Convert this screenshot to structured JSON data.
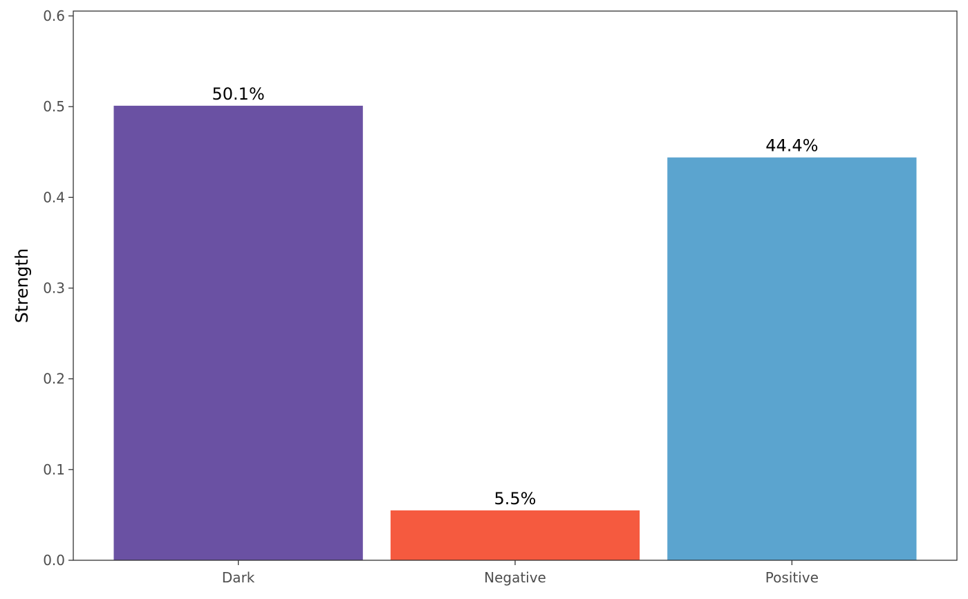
{
  "chart_data": {
    "type": "bar",
    "categories": [
      "Dark",
      "Negative",
      "Positive"
    ],
    "values": [
      0.501,
      0.055,
      0.444
    ],
    "data_labels": [
      "50.1%",
      "5.5%",
      "44.4%"
    ],
    "colors": [
      "#6A51A3",
      "#F55A3F",
      "#5BA4CF"
    ],
    "title": "",
    "xlabel": "",
    "ylabel": "Strength",
    "ylim": [
      0,
      0.6
    ],
    "yticks": [
      0.0,
      0.1,
      0.2,
      0.3,
      0.4,
      0.5,
      0.6
    ],
    "ytick_labels": [
      "0.0",
      "0.1",
      "0.2",
      "0.3",
      "0.4",
      "0.5",
      "0.6"
    ],
    "grid": false
  }
}
